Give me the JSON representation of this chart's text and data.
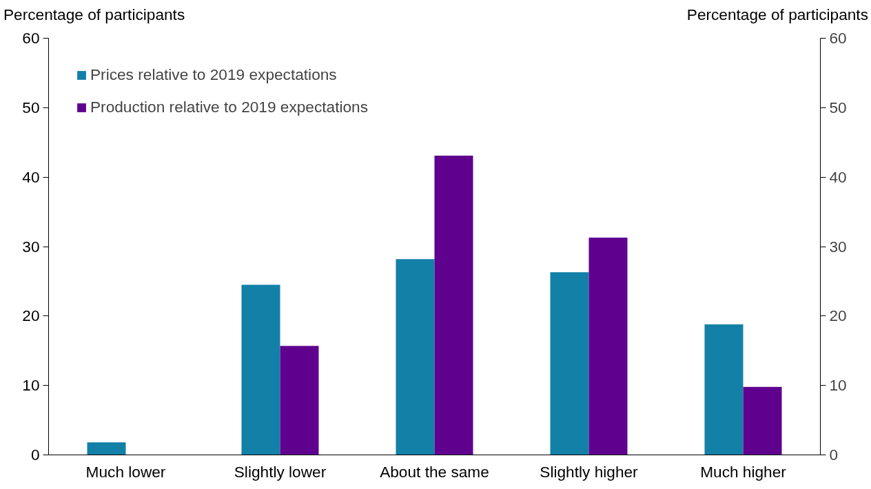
{
  "chart_data": {
    "type": "bar",
    "categories": [
      "Much lower",
      "Slightly lower",
      "About the same",
      "Slightly higher",
      "Much higher"
    ],
    "series": [
      {
        "name": "Prices relative to 2019 expectations",
        "color": "#1380a8",
        "values": [
          1.8,
          24.5,
          28.2,
          26.3,
          18.8
        ]
      },
      {
        "name": "Production relative to 2019 expectations",
        "color": "#5f008f",
        "values": [
          0,
          15.7,
          43.1,
          31.3,
          9.8
        ]
      }
    ],
    "ylabel": "Percentage of participants",
    "y2label": "Percentage of participants",
    "ylim": [
      0,
      60
    ],
    "yticks": [
      0,
      10,
      20,
      30,
      40,
      50,
      60
    ],
    "y2lim": [
      0,
      60
    ],
    "y2ticks": [
      0,
      10,
      20,
      30,
      40,
      50,
      60
    ],
    "grid": false,
    "legend": "top left"
  }
}
